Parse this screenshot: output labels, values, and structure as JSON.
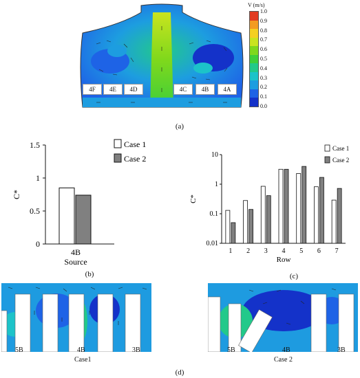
{
  "panel_a": {
    "label": "(a)",
    "colorbar": {
      "title": "V (m/s)",
      "ticks": [
        "1.0",
        "0.9",
        "0.8",
        "0.7",
        "0.6",
        "0.5",
        "0.4",
        "0.3",
        "0.2",
        "0.1",
        "0.0"
      ],
      "colors": [
        "#e23b22",
        "#f39b21",
        "#f4d022",
        "#c9e41f",
        "#7fd81c",
        "#3fcf3a",
        "#22c98a",
        "#1cc3c9",
        "#1d9de0",
        "#1e63e6",
        "#1432c9"
      ]
    },
    "slots_left": [
      "4F",
      "4E",
      "4D"
    ],
    "slots_right": [
      "4C",
      "4B",
      "4A"
    ]
  },
  "panel_b": {
    "label": "(b)",
    "ylabel": "C*",
    "yticks": [
      "1.5",
      "1",
      "0.5",
      "0"
    ],
    "xlabel_line1": "4B",
    "xlabel_line2": "Source",
    "legend": [
      "Case 1",
      "Case 2"
    ]
  },
  "panel_c": {
    "label": "(c)",
    "ylabel": "C*",
    "xlabel": "Row",
    "yticks": [
      "10",
      "1",
      "0.1",
      "0.01"
    ],
    "xticks": [
      "1",
      "2",
      "3",
      "4",
      "5",
      "6",
      "7"
    ],
    "legend": [
      "Case 1",
      "Case 2"
    ]
  },
  "panel_d": {
    "label": "(d)",
    "left_labels": [
      "5B",
      "4B",
      "3B"
    ],
    "left_case": "Case1",
    "right_labels": [
      "5B",
      "4B",
      "3B"
    ],
    "right_case": "Case 2"
  },
  "chart_data": [
    {
      "type": "bar",
      "categories": [
        "4B"
      ],
      "series": [
        {
          "name": "Case 1",
          "values": [
            0.85
          ]
        },
        {
          "name": "Case 2",
          "values": [
            0.74
          ]
        }
      ],
      "ylabel": "C*",
      "ylim": [
        0,
        1.5
      ],
      "colors": [
        "#ffffff",
        "#808080"
      ]
    },
    {
      "type": "bar",
      "categories": [
        "1",
        "2",
        "3",
        "4",
        "5",
        "6",
        "7"
      ],
      "series": [
        {
          "name": "Case 1",
          "values": [
            0.13,
            0.28,
            0.85,
            3.2,
            2.3,
            0.82,
            0.29
          ]
        },
        {
          "name": "Case 2",
          "values": [
            0.05,
            0.14,
            0.41,
            3.2,
            4.0,
            1.7,
            0.72
          ]
        }
      ],
      "xlabel": "Row",
      "ylabel": "C*",
      "yscale": "log",
      "ylim": [
        0.01,
        10
      ],
      "colors": [
        "#ffffff",
        "#808080"
      ]
    }
  ]
}
